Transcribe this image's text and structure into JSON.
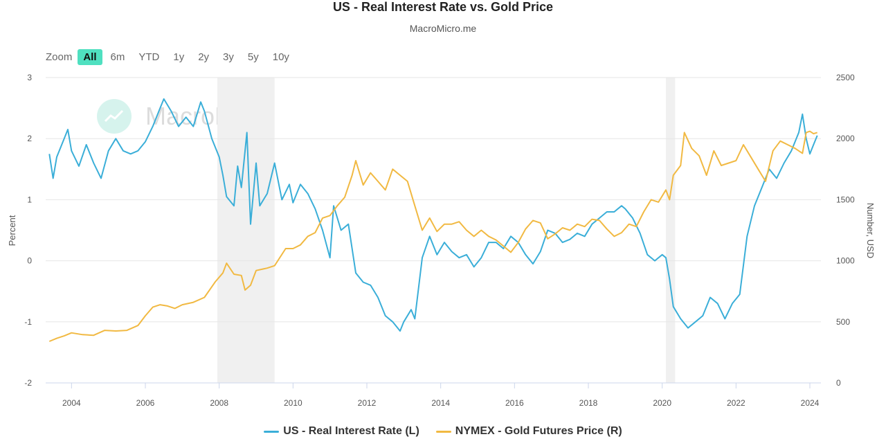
{
  "chart_data": {
    "type": "line",
    "title": "US - Real Interest Rate vs. Gold Price",
    "subtitle": "MacroMicro.me",
    "xlim": [
      2003.3,
      2024.3
    ],
    "x_ticks": [
      "2004",
      "2006",
      "2008",
      "2010",
      "2012",
      "2014",
      "2016",
      "2018",
      "2020",
      "2022",
      "2024"
    ],
    "y_left": {
      "label": "Percent",
      "range": [
        -2,
        3
      ],
      "ticks": [
        "-2",
        "-1",
        "0",
        "1",
        "2",
        "3"
      ]
    },
    "y_right": {
      "label": "Number, USD",
      "range": [
        0,
        2500
      ],
      "ticks": [
        "0",
        "500",
        "1000",
        "1500",
        "2000",
        "2500"
      ]
    },
    "grid": true,
    "legend_position": "bottom",
    "shaded_periods": [
      [
        2007.95,
        2009.5
      ],
      [
        2020.1,
        2020.35
      ]
    ],
    "series": [
      {
        "name": "US - Real Interest Rate (L)",
        "axis": "left",
        "color": "#3aaed8",
        "points": [
          [
            2003.4,
            1.75
          ],
          [
            2003.5,
            1.35
          ],
          [
            2003.6,
            1.7
          ],
          [
            2003.8,
            2.0
          ],
          [
            2003.9,
            2.15
          ],
          [
            2004.0,
            1.8
          ],
          [
            2004.2,
            1.55
          ],
          [
            2004.4,
            1.9
          ],
          [
            2004.6,
            1.6
          ],
          [
            2004.8,
            1.35
          ],
          [
            2005.0,
            1.8
          ],
          [
            2005.2,
            2.0
          ],
          [
            2005.4,
            1.8
          ],
          [
            2005.6,
            1.75
          ],
          [
            2005.8,
            1.8
          ],
          [
            2006.0,
            1.95
          ],
          [
            2006.2,
            2.2
          ],
          [
            2006.4,
            2.5
          ],
          [
            2006.5,
            2.65
          ],
          [
            2006.7,
            2.45
          ],
          [
            2006.9,
            2.2
          ],
          [
            2007.1,
            2.35
          ],
          [
            2007.3,
            2.2
          ],
          [
            2007.5,
            2.6
          ],
          [
            2007.6,
            2.45
          ],
          [
            2007.8,
            2.0
          ],
          [
            2008.0,
            1.7
          ],
          [
            2008.1,
            1.4
          ],
          [
            2008.2,
            1.05
          ],
          [
            2008.4,
            0.9
          ],
          [
            2008.5,
            1.55
          ],
          [
            2008.6,
            1.2
          ],
          [
            2008.75,
            2.1
          ],
          [
            2008.85,
            0.6
          ],
          [
            2009.0,
            1.6
          ],
          [
            2009.1,
            0.9
          ],
          [
            2009.3,
            1.1
          ],
          [
            2009.5,
            1.6
          ],
          [
            2009.7,
            1.0
          ],
          [
            2009.9,
            1.25
          ],
          [
            2010.0,
            0.95
          ],
          [
            2010.2,
            1.25
          ],
          [
            2010.4,
            1.1
          ],
          [
            2010.6,
            0.85
          ],
          [
            2010.8,
            0.5
          ],
          [
            2011.0,
            0.05
          ],
          [
            2011.1,
            0.9
          ],
          [
            2011.3,
            0.5
          ],
          [
            2011.5,
            0.6
          ],
          [
            2011.7,
            -0.2
          ],
          [
            2011.9,
            -0.35
          ],
          [
            2012.1,
            -0.4
          ],
          [
            2012.3,
            -0.6
          ],
          [
            2012.5,
            -0.9
          ],
          [
            2012.7,
            -1.0
          ],
          [
            2012.9,
            -1.15
          ],
          [
            2013.0,
            -1.0
          ],
          [
            2013.2,
            -0.8
          ],
          [
            2013.3,
            -0.95
          ],
          [
            2013.5,
            0.05
          ],
          [
            2013.7,
            0.4
          ],
          [
            2013.9,
            0.1
          ],
          [
            2014.1,
            0.3
          ],
          [
            2014.3,
            0.15
          ],
          [
            2014.5,
            0.05
          ],
          [
            2014.7,
            0.1
          ],
          [
            2014.9,
            -0.1
          ],
          [
            2015.1,
            0.05
          ],
          [
            2015.3,
            0.3
          ],
          [
            2015.5,
            0.3
          ],
          [
            2015.7,
            0.2
          ],
          [
            2015.9,
            0.4
          ],
          [
            2016.1,
            0.3
          ],
          [
            2016.3,
            0.1
          ],
          [
            2016.5,
            -0.05
          ],
          [
            2016.7,
            0.15
          ],
          [
            2016.9,
            0.5
          ],
          [
            2017.1,
            0.45
          ],
          [
            2017.3,
            0.3
          ],
          [
            2017.5,
            0.35
          ],
          [
            2017.7,
            0.45
          ],
          [
            2017.9,
            0.4
          ],
          [
            2018.1,
            0.6
          ],
          [
            2018.3,
            0.7
          ],
          [
            2018.5,
            0.8
          ],
          [
            2018.7,
            0.8
          ],
          [
            2018.9,
            0.9
          ],
          [
            2019.0,
            0.85
          ],
          [
            2019.2,
            0.7
          ],
          [
            2019.4,
            0.45
          ],
          [
            2019.6,
            0.1
          ],
          [
            2019.8,
            0.0
          ],
          [
            2020.0,
            0.1
          ],
          [
            2020.1,
            0.05
          ],
          [
            2020.2,
            -0.3
          ],
          [
            2020.3,
            -0.75
          ],
          [
            2020.5,
            -0.95
          ],
          [
            2020.7,
            -1.1
          ],
          [
            2020.9,
            -1.0
          ],
          [
            2021.1,
            -0.9
          ],
          [
            2021.3,
            -0.6
          ],
          [
            2021.5,
            -0.7
          ],
          [
            2021.7,
            -0.95
          ],
          [
            2021.9,
            -0.7
          ],
          [
            2022.1,
            -0.55
          ],
          [
            2022.3,
            0.4
          ],
          [
            2022.5,
            0.9
          ],
          [
            2022.7,
            1.2
          ],
          [
            2022.9,
            1.5
          ],
          [
            2023.1,
            1.35
          ],
          [
            2023.3,
            1.6
          ],
          [
            2023.5,
            1.8
          ],
          [
            2023.7,
            2.1
          ],
          [
            2023.8,
            2.4
          ],
          [
            2023.9,
            2.0
          ],
          [
            2024.0,
            1.75
          ],
          [
            2024.1,
            1.9
          ],
          [
            2024.2,
            2.05
          ]
        ]
      },
      {
        "name": "NYMEX - Gold Futures Price (R)",
        "axis": "right",
        "color": "#f1b942",
        "points": [
          [
            2003.4,
            340
          ],
          [
            2003.6,
            365
          ],
          [
            2003.8,
            385
          ],
          [
            2004.0,
            410
          ],
          [
            2004.3,
            395
          ],
          [
            2004.6,
            390
          ],
          [
            2004.9,
            430
          ],
          [
            2005.2,
            425
          ],
          [
            2005.5,
            430
          ],
          [
            2005.8,
            470
          ],
          [
            2006.0,
            550
          ],
          [
            2006.2,
            620
          ],
          [
            2006.4,
            640
          ],
          [
            2006.6,
            630
          ],
          [
            2006.8,
            610
          ],
          [
            2007.0,
            640
          ],
          [
            2007.3,
            660
          ],
          [
            2007.6,
            700
          ],
          [
            2007.9,
            830
          ],
          [
            2008.1,
            900
          ],
          [
            2008.2,
            980
          ],
          [
            2008.4,
            890
          ],
          [
            2008.6,
            880
          ],
          [
            2008.7,
            760
          ],
          [
            2008.85,
            800
          ],
          [
            2009.0,
            920
          ],
          [
            2009.3,
            940
          ],
          [
            2009.5,
            960
          ],
          [
            2009.8,
            1100
          ],
          [
            2010.0,
            1100
          ],
          [
            2010.2,
            1130
          ],
          [
            2010.4,
            1200
          ],
          [
            2010.6,
            1230
          ],
          [
            2010.8,
            1350
          ],
          [
            2011.0,
            1370
          ],
          [
            2011.2,
            1450
          ],
          [
            2011.4,
            1520
          ],
          [
            2011.6,
            1700
          ],
          [
            2011.7,
            1820
          ],
          [
            2011.9,
            1620
          ],
          [
            2012.1,
            1720
          ],
          [
            2012.3,
            1650
          ],
          [
            2012.5,
            1580
          ],
          [
            2012.7,
            1750
          ],
          [
            2012.9,
            1700
          ],
          [
            2013.1,
            1650
          ],
          [
            2013.3,
            1450
          ],
          [
            2013.5,
            1250
          ],
          [
            2013.7,
            1350
          ],
          [
            2013.9,
            1240
          ],
          [
            2014.1,
            1300
          ],
          [
            2014.3,
            1300
          ],
          [
            2014.5,
            1320
          ],
          [
            2014.7,
            1250
          ],
          [
            2014.9,
            1200
          ],
          [
            2015.1,
            1250
          ],
          [
            2015.3,
            1200
          ],
          [
            2015.5,
            1170
          ],
          [
            2015.7,
            1120
          ],
          [
            2015.9,
            1070
          ],
          [
            2016.1,
            1150
          ],
          [
            2016.3,
            1260
          ],
          [
            2016.5,
            1330
          ],
          [
            2016.7,
            1310
          ],
          [
            2016.9,
            1180
          ],
          [
            2017.1,
            1220
          ],
          [
            2017.3,
            1270
          ],
          [
            2017.5,
            1250
          ],
          [
            2017.7,
            1300
          ],
          [
            2017.9,
            1280
          ],
          [
            2018.1,
            1340
          ],
          [
            2018.3,
            1330
          ],
          [
            2018.5,
            1260
          ],
          [
            2018.7,
            1200
          ],
          [
            2018.9,
            1230
          ],
          [
            2019.1,
            1300
          ],
          [
            2019.3,
            1280
          ],
          [
            2019.5,
            1400
          ],
          [
            2019.7,
            1500
          ],
          [
            2019.9,
            1480
          ],
          [
            2020.1,
            1580
          ],
          [
            2020.2,
            1500
          ],
          [
            2020.3,
            1700
          ],
          [
            2020.5,
            1780
          ],
          [
            2020.6,
            2050
          ],
          [
            2020.8,
            1920
          ],
          [
            2021.0,
            1860
          ],
          [
            2021.2,
            1700
          ],
          [
            2021.4,
            1900
          ],
          [
            2021.6,
            1780
          ],
          [
            2021.8,
            1800
          ],
          [
            2022.0,
            1820
          ],
          [
            2022.2,
            1950
          ],
          [
            2022.4,
            1850
          ],
          [
            2022.6,
            1750
          ],
          [
            2022.8,
            1650
          ],
          [
            2023.0,
            1900
          ],
          [
            2023.2,
            1980
          ],
          [
            2023.4,
            1950
          ],
          [
            2023.6,
            1920
          ],
          [
            2023.8,
            1880
          ],
          [
            2023.9,
            2050
          ],
          [
            2024.0,
            2060
          ],
          [
            2024.1,
            2040
          ],
          [
            2024.2,
            2050
          ]
        ]
      }
    ]
  },
  "watermark": {
    "text": "MacroMicro"
  },
  "zoom": {
    "label": "Zoom",
    "buttons": [
      "All",
      "6m",
      "YTD",
      "1y",
      "2y",
      "3y",
      "5y",
      "10y"
    ],
    "active": "All"
  },
  "colors": {
    "accent": "#4fe0c0",
    "grid": "#e6e6e6",
    "shade": "#f0f0f0"
  }
}
